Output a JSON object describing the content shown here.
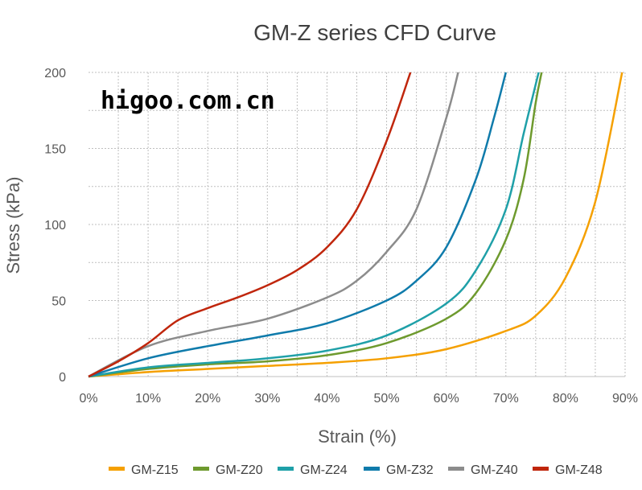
{
  "chart_data": {
    "type": "line",
    "title": "GM-Z series CFD Curve",
    "xlabel": "Strain (%)",
    "ylabel": "Stress (kPa)",
    "xlim": [
      0,
      90
    ],
    "ylim": [
      0,
      200
    ],
    "x_ticks": [
      "0%",
      "10%",
      "20%",
      "30%",
      "40%",
      "50%",
      "60%",
      "70%",
      "80%",
      "90%"
    ],
    "y_ticks": [
      "0",
      "50",
      "100",
      "150",
      "200"
    ],
    "grid": true,
    "legend_position": "bottom",
    "series": [
      {
        "name": "GM-Z15",
        "color": "#f5a000",
        "points": [
          [
            0,
            0
          ],
          [
            10,
            3
          ],
          [
            20,
            5
          ],
          [
            30,
            7
          ],
          [
            40,
            9
          ],
          [
            50,
            12
          ],
          [
            60,
            18
          ],
          [
            70,
            30
          ],
          [
            75,
            40
          ],
          [
            80,
            65
          ],
          [
            85,
            115
          ],
          [
            89.5,
            200
          ]
        ]
      },
      {
        "name": "GM-Z20",
        "color": "#6e9a2e",
        "points": [
          [
            0,
            0
          ],
          [
            10,
            5
          ],
          [
            20,
            8
          ],
          [
            30,
            10
          ],
          [
            40,
            14
          ],
          [
            50,
            22
          ],
          [
            60,
            38
          ],
          [
            65,
            55
          ],
          [
            70,
            90
          ],
          [
            73,
            130
          ],
          [
            75,
            180
          ],
          [
            76,
            200
          ]
        ]
      },
      {
        "name": "GM-Z24",
        "color": "#1fa0a8",
        "points": [
          [
            0,
            0
          ],
          [
            10,
            6
          ],
          [
            20,
            9
          ],
          [
            30,
            12
          ],
          [
            40,
            17
          ],
          [
            50,
            27
          ],
          [
            60,
            48
          ],
          [
            65,
            70
          ],
          [
            70,
            110
          ],
          [
            73,
            160
          ],
          [
            75.5,
            200
          ]
        ]
      },
      {
        "name": "GM-Z32",
        "color": "#0f7bab",
        "points": [
          [
            0,
            0
          ],
          [
            10,
            12
          ],
          [
            20,
            20
          ],
          [
            30,
            27
          ],
          [
            40,
            35
          ],
          [
            50,
            50
          ],
          [
            55,
            63
          ],
          [
            60,
            85
          ],
          [
            65,
            130
          ],
          [
            68,
            170
          ],
          [
            70,
            200
          ]
        ]
      },
      {
        "name": "GM-Z40",
        "color": "#8c8c8c",
        "points": [
          [
            0,
            0
          ],
          [
            10,
            20
          ],
          [
            20,
            30
          ],
          [
            30,
            38
          ],
          [
            40,
            52
          ],
          [
            45,
            63
          ],
          [
            50,
            82
          ],
          [
            55,
            110
          ],
          [
            60,
            170
          ],
          [
            62,
            200
          ]
        ]
      },
      {
        "name": "GM-Z48",
        "color": "#c0260c",
        "points": [
          [
            0,
            0
          ],
          [
            5,
            10
          ],
          [
            10,
            22
          ],
          [
            15,
            37
          ],
          [
            20,
            45
          ],
          [
            25,
            52
          ],
          [
            30,
            60
          ],
          [
            35,
            70
          ],
          [
            40,
            85
          ],
          [
            45,
            110
          ],
          [
            50,
            155
          ],
          [
            54,
            200
          ]
        ]
      }
    ]
  },
  "watermark": "higoo.com.cn"
}
